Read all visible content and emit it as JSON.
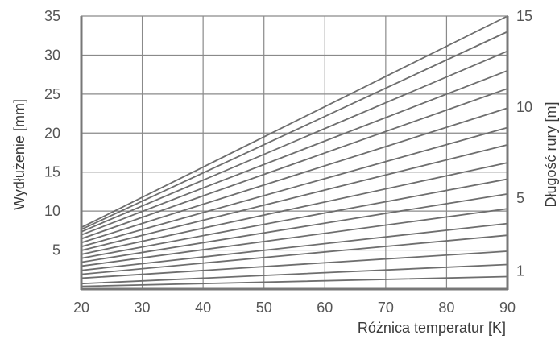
{
  "chart_data": {
    "type": "line",
    "title": "",
    "xlabel": "Różnica temperatur [K]",
    "ylabel": "Wydłużenie [mm]",
    "y2label": "Długość rury [m]",
    "xlim": [
      20,
      90
    ],
    "ylim": [
      0,
      35
    ],
    "y2lim": [
      0,
      15
    ],
    "x_ticks": [
      "20",
      "30",
      "40",
      "50",
      "60",
      "70",
      "80",
      "90"
    ],
    "y_ticks": [
      "5",
      "10",
      "15",
      "20",
      "25",
      "30",
      "35"
    ],
    "y2_ticks": [
      "1",
      "5",
      "10",
      "15"
    ],
    "grid": true,
    "colors": {
      "series": "#6e6e6e",
      "grid": "#8a8a8a",
      "axis": "#777777",
      "text": "#555555"
    },
    "x": [
      20,
      90
    ],
    "series": [
      {
        "values": [
          0.35,
          1.6
        ]
      },
      {
        "values": [
          0.7,
          3.15
        ]
      },
      {
        "values": [
          1.4,
          4.85
        ]
      },
      {
        "values": [
          1.9,
          6.9
        ]
      },
      {
        "values": [
          2.4,
          8.4
        ]
      },
      {
        "values": [
          2.95,
          10.3
        ]
      },
      {
        "values": [
          3.45,
          12.2
        ]
      },
      {
        "values": [
          3.95,
          14.1
        ]
      },
      {
        "values": [
          4.45,
          16.2
        ]
      },
      {
        "values": [
          4.95,
          18.5
        ]
      },
      {
        "values": [
          5.45,
          20.7
        ]
      },
      {
        "values": [
          5.95,
          23.2
        ]
      },
      {
        "values": [
          6.45,
          25.7
        ]
      },
      {
        "values": [
          6.95,
          28.0
        ]
      },
      {
        "values": [
          7.35,
          30.5
        ]
      },
      {
        "values": [
          7.65,
          33.0
        ]
      },
      {
        "values": [
          7.9,
          35.0
        ]
      }
    ]
  }
}
